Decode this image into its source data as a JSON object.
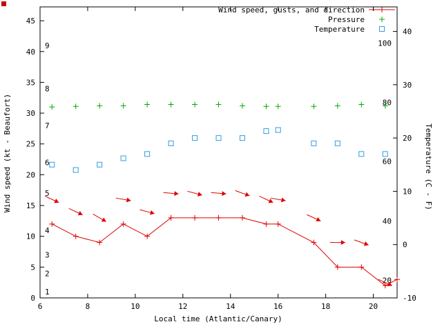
{
  "colors": {
    "wind": "#dd0000",
    "pressure": "#00aa00",
    "temperature": "#2f9de0",
    "frame": "#000000",
    "text": "#000000",
    "corner_mark": "#cc0000"
  },
  "legend": {
    "wind": "Wind speed, gusts, and direction",
    "pressure": "Pressure",
    "temperature": "Temperature"
  },
  "axes": {
    "x": {
      "label": "Local time (Atlantic/Canary)",
      "min": 6,
      "max": 21,
      "ticks": [
        6,
        8,
        10,
        12,
        14,
        16,
        18,
        20
      ]
    },
    "y_left": {
      "label": "Wind speed (kt - Beaufort)",
      "min": 0,
      "max": 47.25,
      "ticks": [
        0,
        5,
        10,
        15,
        20,
        25,
        30,
        35,
        40,
        45
      ],
      "beaufort_scale_labels": [
        {
          "text": "1",
          "kt": 1
        },
        {
          "text": "2",
          "kt": 4
        },
        {
          "text": "3",
          "kt": 7
        },
        {
          "text": "4",
          "kt": 11
        },
        {
          "text": "5",
          "kt": 17
        },
        {
          "text": "6",
          "kt": 22
        },
        {
          "text": "7",
          "kt": 28
        },
        {
          "text": "8",
          "kt": 34
        },
        {
          "text": "9",
          "kt": 41
        }
      ]
    },
    "y_right": {
      "label": "Temperature (C - F)",
      "min": -10,
      "max": 44.6,
      "ticks": [
        -10,
        0,
        10,
        20,
        30,
        40
      ],
      "fahrenheit_scale_labels": [
        {
          "text": "20",
          "c": -6.7
        },
        {
          "text": "40",
          "c": 4.4
        },
        {
          "text": "60",
          "c": 15.6
        },
        {
          "text": "80",
          "c": 26.7
        },
        {
          "text": "100",
          "c": 37.8
        }
      ]
    }
  },
  "chart_data": {
    "type": "line",
    "title": "Wind speed, gusts, and direction / Pressure / Temperature",
    "xlabel": "Local time (Atlantic/Canary)",
    "x_range": [
      6,
      21
    ],
    "y_left_range": [
      0,
      47.25
    ],
    "y_right_range": [
      -10,
      44.6
    ],
    "grid": false,
    "legend_position": "top-right",
    "series": [
      {
        "name": "Wind speed",
        "unit": "kt",
        "axis": "left",
        "color": "#dd0000",
        "marker": "plus",
        "line": true,
        "x": [
          6.5,
          7.5,
          8.5,
          9.5,
          10.5,
          11.5,
          12.5,
          13.5,
          14.5,
          15.5,
          16,
          17.5,
          18.5,
          19.5,
          20.5,
          21
        ],
        "y": [
          12,
          10,
          9,
          12,
          10,
          13,
          13,
          13,
          13,
          12,
          12,
          9,
          5,
          5,
          2,
          3
        ]
      },
      {
        "name": "Wind gusts with direction arrows",
        "unit": "kt",
        "axis": "left",
        "color": "#dd0000",
        "marker": "arrow",
        "line": false,
        "x": [
          6.5,
          7.5,
          8.5,
          9.5,
          10.5,
          11.5,
          12.5,
          13.5,
          14.5,
          15.5,
          16,
          17.5,
          18.5,
          19.5,
          20.5
        ],
        "y": [
          16,
          14,
          13,
          16,
          14,
          17,
          17,
          17,
          17,
          16,
          16,
          13,
          9,
          9,
          2.5
        ],
        "arrow_heading_deg": [
          115,
          115,
          120,
          100,
          105,
          95,
          105,
          95,
          110,
          115,
          100,
          115,
          90,
          110,
          115
        ]
      },
      {
        "name": "Pressure",
        "axis": "left",
        "color": "#00aa00",
        "marker": "plus",
        "line": false,
        "x": [
          6.5,
          7.5,
          8.5,
          9.5,
          10.5,
          11.5,
          12.5,
          13.5,
          14.5,
          15.5,
          16,
          17.5,
          18.5,
          19.5,
          20.5
        ],
        "y": [
          31.0,
          31.1,
          31.2,
          31.2,
          31.4,
          31.4,
          31.4,
          31.4,
          31.2,
          31.1,
          31.1,
          31.1,
          31.2,
          31.4,
          31.2
        ]
      },
      {
        "name": "Temperature",
        "unit": "C",
        "axis": "right",
        "color": "#2f9de0",
        "marker": "open-square",
        "line": false,
        "x": [
          6.5,
          7.5,
          8.5,
          9.5,
          10.5,
          11.5,
          12.5,
          13.5,
          14.5,
          15.5,
          16,
          17.5,
          18.5,
          19.5,
          20.5
        ],
        "y": [
          15,
          14,
          15,
          16.2,
          17,
          19,
          20,
          20,
          20,
          21.3,
          21.5,
          19,
          19,
          17,
          17
        ]
      }
    ]
  }
}
